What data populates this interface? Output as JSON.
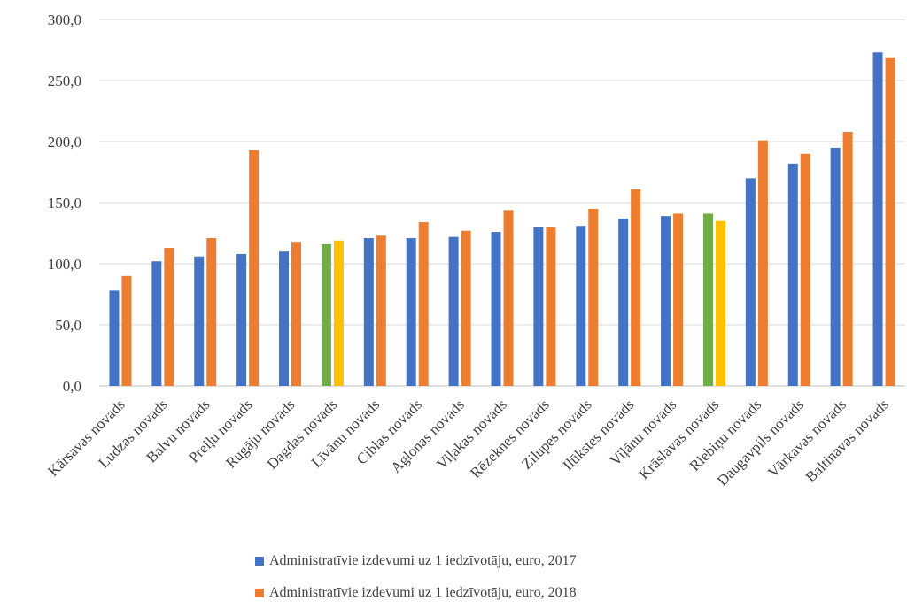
{
  "chart_data": {
    "type": "bar",
    "categories": [
      "Kārsavas novads",
      "Ludzas novads",
      "Balvu novads",
      "Preiļu novads",
      "Rugāju novads",
      "Dagdas novads",
      "Līvānu novads",
      "Ciblas novads",
      "Aglonas novads",
      "Viļakas novads",
      "Rēzeknes novads",
      "Zilupes novads",
      "Ilūkstes novads",
      "Viļānu novads",
      "Krāslavas novads",
      "Riebiņu novads",
      "Daugavpils novads",
      "Vārkavas novads",
      "Baltinavas novads"
    ],
    "series": [
      {
        "name": "Administratīvie izdevumi uz 1 iedzīvotāju, euro, 2017",
        "color": "#4472C4",
        "values": [
          78,
          102,
          106,
          108,
          110,
          116,
          121,
          121,
          122,
          126,
          130,
          131,
          137,
          139,
          141,
          170,
          182,
          195,
          273
        ],
        "highlight_colors": {
          "5": "#70AD47",
          "14": "#70AD47"
        }
      },
      {
        "name": "Administratīvie izdevumi uz 1 iedzīvotāju, euro, 2018",
        "color": "#ED7D31",
        "values": [
          90,
          113,
          121,
          193,
          118,
          119,
          123,
          134,
          127,
          144,
          130,
          145,
          161,
          141,
          135,
          201,
          190,
          208,
          269
        ],
        "highlight_colors": {
          "5": "#FFC000",
          "14": "#FFC000"
        }
      }
    ],
    "ylim": [
      0,
      300
    ],
    "yticks": [
      "0,0",
      "50,0",
      "100,0",
      "150,0",
      "200,0",
      "250,0",
      "300,0"
    ],
    "grid": true,
    "legend_position": "bottom"
  }
}
